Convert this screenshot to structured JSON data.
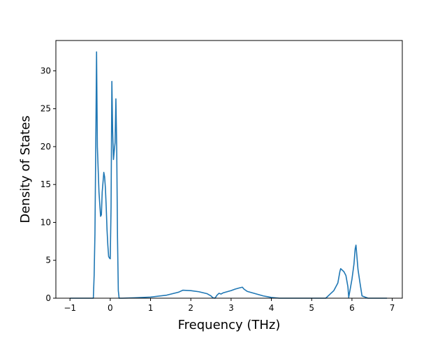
{
  "chart_data": {
    "type": "line",
    "title": "",
    "xlabel": "Frequency (THz)",
    "ylabel": "Density of States",
    "xlim": [
      -1.35,
      7.25
    ],
    "ylim": [
      0,
      34
    ],
    "xticks": [
      -1,
      0,
      1,
      2,
      3,
      4,
      5,
      6,
      7
    ],
    "yticks": [
      0,
      5,
      10,
      15,
      20,
      25,
      30
    ],
    "grid": false,
    "colors": {
      "line": "#1f77b4",
      "axes": "#000000",
      "background": "#ffffff"
    },
    "series": [
      {
        "x": [
          -1.0,
          -0.42,
          -0.4,
          -0.38,
          -0.36,
          -0.34,
          -0.32,
          -0.28,
          -0.24,
          -0.22,
          -0.2,
          -0.16,
          -0.14,
          -0.12,
          -0.1,
          -0.08,
          -0.06,
          -0.04,
          -0.02,
          0.0,
          0.02,
          0.04,
          0.06,
          0.08,
          0.1,
          0.12,
          0.14,
          0.16,
          0.18,
          0.2,
          0.22,
          0.24,
          0.26,
          0.28,
          0.3,
          0.6,
          1.0,
          1.4,
          1.7,
          1.8,
          2.0,
          2.2,
          2.4,
          2.5,
          2.55,
          2.6,
          2.65,
          2.7,
          2.75,
          2.8,
          3.0,
          3.1,
          3.2,
          3.28,
          3.32,
          3.4,
          3.6,
          3.8,
          4.0,
          4.2,
          5.0,
          5.35,
          5.45,
          5.55,
          5.65,
          5.7,
          5.72,
          5.8,
          5.85,
          5.9,
          5.92,
          6.0,
          6.05,
          6.08,
          6.1,
          6.15,
          6.2,
          6.25,
          6.4,
          6.87
        ],
        "y": [
          0,
          0,
          3.0,
          8.5,
          20.0,
          32.5,
          20.0,
          14.0,
          10.8,
          11.0,
          14.0,
          16.6,
          16.0,
          14.5,
          12.0,
          9.0,
          7.0,
          5.5,
          5.3,
          5.2,
          12.0,
          28.6,
          22.0,
          18.3,
          19.5,
          20.5,
          26.3,
          20.0,
          8.0,
          1.0,
          0,
          0,
          0,
          0,
          0,
          0.05,
          0.15,
          0.4,
          0.8,
          1.05,
          1.0,
          0.85,
          0.6,
          0.3,
          0.05,
          0,
          0.4,
          0.65,
          0.55,
          0.7,
          1.0,
          1.2,
          1.35,
          1.45,
          1.2,
          0.9,
          0.6,
          0.3,
          0.1,
          0,
          0,
          0,
          0.5,
          1.0,
          2.0,
          3.5,
          3.9,
          3.5,
          3.0,
          1.5,
          0.1,
          2.5,
          4.5,
          6.5,
          7.0,
          3.8,
          2.0,
          0.3,
          0,
          0
        ]
      }
    ]
  }
}
